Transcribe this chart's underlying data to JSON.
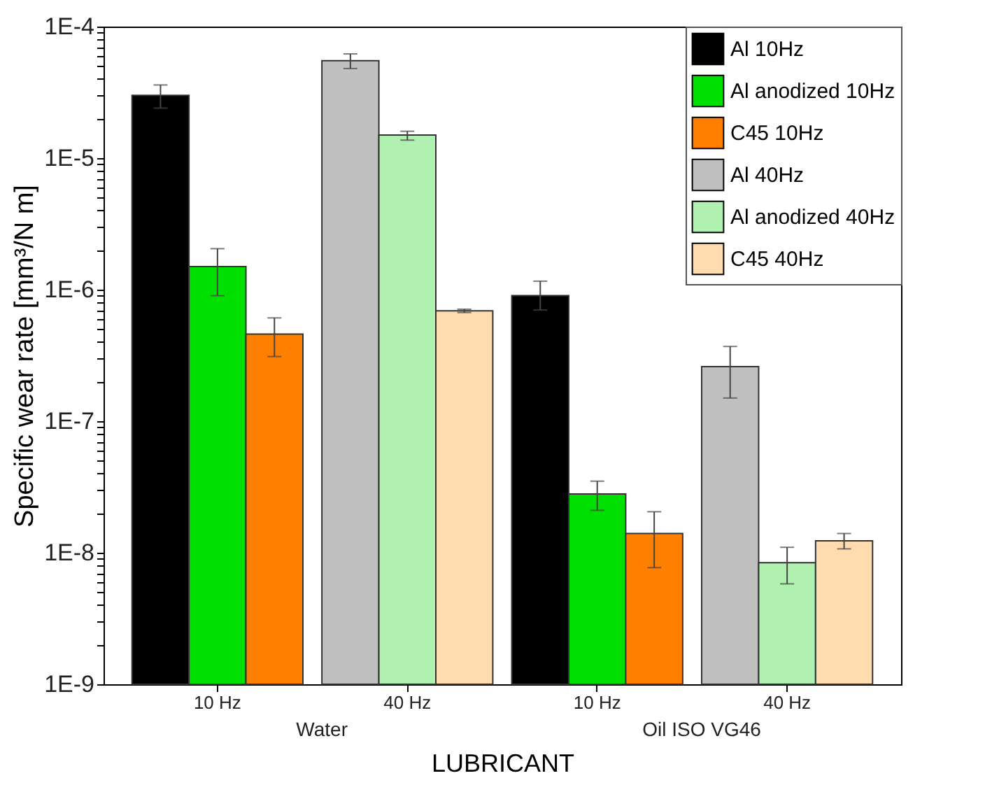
{
  "chart_data": {
    "type": "bar",
    "xlabel": "LUBRICANT",
    "ylabel": "Specific wear rate [mm³/N m]",
    "categories": [
      "10 Hz",
      "40 Hz",
      "10 Hz",
      "40 Hz"
    ],
    "annotations": [
      "Water",
      "Oil ISO VG46"
    ],
    "series": [
      {
        "name": "Al 10Hz",
        "color": "#000000",
        "values": [
          3e-05,
          null,
          9e-07,
          null
        ],
        "errors": [
          [
            2.4e-05,
            3.6e-05
          ],
          null,
          [
            7e-07,
            1.16e-06
          ],
          null
        ]
      },
      {
        "name": "Al anodized 10Hz",
        "color": "#00e000",
        "values": [
          1.5e-06,
          null,
          2.8e-08,
          null
        ],
        "errors": [
          [
            9e-07,
            2.05e-06
          ],
          null,
          [
            2.1e-08,
            3.5e-08
          ],
          null
        ]
      },
      {
        "name": "C45 10Hz",
        "color": "#ff8000",
        "values": [
          4.6e-07,
          null,
          1.4e-08,
          null
        ],
        "errors": [
          [
            3.1e-07,
            6.1e-07
          ],
          null,
          [
            7.7e-09,
            2.05e-08
          ],
          null
        ]
      },
      {
        "name": "Al 40Hz",
        "color": "#c0c0c0",
        "values": [
          null,
          5.5e-05,
          null,
          2.6e-07
        ],
        "errors": [
          null,
          [
            4.8e-05,
            6.2e-05
          ],
          null,
          [
            1.5e-07,
            3.7e-07
          ]
        ]
      },
      {
        "name": "Al anodized 40Hz",
        "color": "#b0f0b0",
        "values": [
          null,
          1.5e-05,
          null,
          8.4e-09
        ],
        "errors": [
          null,
          [
            1.37e-05,
            1.6e-05
          ],
          null,
          [
            5.8e-09,
            1.1e-08
          ]
        ]
      },
      {
        "name": "C45 40Hz",
        "color": "#ffdcb0",
        "values": [
          null,
          6.9e-07,
          null,
          1.23e-08
        ],
        "errors": [
          null,
          [
            6.7e-07,
            7.1e-07
          ],
          null,
          [
            1.07e-08,
            1.4e-08
          ]
        ]
      }
    ],
    "log": "y",
    "ylim": [
      1e-09,
      0.0001
    ],
    "yticks": [
      {
        "value": 1e-09,
        "label": "1E-9"
      },
      {
        "value": 2e-09,
        "label": null
      },
      {
        "value": 3e-09,
        "label": null
      },
      {
        "value": 4e-09,
        "label": null
      },
      {
        "value": 5e-09,
        "label": null
      },
      {
        "value": 6e-09,
        "label": null
      },
      {
        "value": 7e-09,
        "label": null
      },
      {
        "value": 8e-09,
        "label": null
      },
      {
        "value": 9e-09,
        "label": null
      },
      {
        "value": 1e-08,
        "label": "1E-8"
      },
      {
        "value": 2e-08,
        "label": null
      },
      {
        "value": 3e-08,
        "label": null
      },
      {
        "value": 4e-08,
        "label": null
      },
      {
        "value": 5e-08,
        "label": null
      },
      {
        "value": 6e-08,
        "label": null
      },
      {
        "value": 7e-08,
        "label": null
      },
      {
        "value": 8e-08,
        "label": null
      },
      {
        "value": 9e-08,
        "label": null
      },
      {
        "value": 1e-07,
        "label": "1E-7"
      },
      {
        "value": 2e-07,
        "label": null
      },
      {
        "value": 3e-07,
        "label": null
      },
      {
        "value": 4e-07,
        "label": null
      },
      {
        "value": 5e-07,
        "label": null
      },
      {
        "value": 6e-07,
        "label": null
      },
      {
        "value": 7e-07,
        "label": null
      },
      {
        "value": 8e-07,
        "label": null
      },
      {
        "value": 9e-07,
        "label": null
      },
      {
        "value": 1e-06,
        "label": "1E-6"
      },
      {
        "value": 2e-06,
        "label": null
      },
      {
        "value": 3e-06,
        "label": null
      },
      {
        "value": 4e-06,
        "label": null
      },
      {
        "value": 5e-06,
        "label": null
      },
      {
        "value": 6e-06,
        "label": null
      },
      {
        "value": 7e-06,
        "label": null
      },
      {
        "value": 8e-06,
        "label": null
      },
      {
        "value": 9e-06,
        "label": null
      },
      {
        "value": 1e-05,
        "label": "1E-5"
      },
      {
        "value": 2e-05,
        "label": null
      },
      {
        "value": 3e-05,
        "label": null
      },
      {
        "value": 4e-05,
        "label": null
      },
      {
        "value": 5e-05,
        "label": null
      },
      {
        "value": 6e-05,
        "label": null
      },
      {
        "value": 7e-05,
        "label": null
      },
      {
        "value": 8e-05,
        "label": null
      },
      {
        "value": 9e-05,
        "label": null
      },
      {
        "value": 0.0001,
        "label": "1E-4"
      }
    ],
    "grid": false,
    "legend": "top right"
  }
}
